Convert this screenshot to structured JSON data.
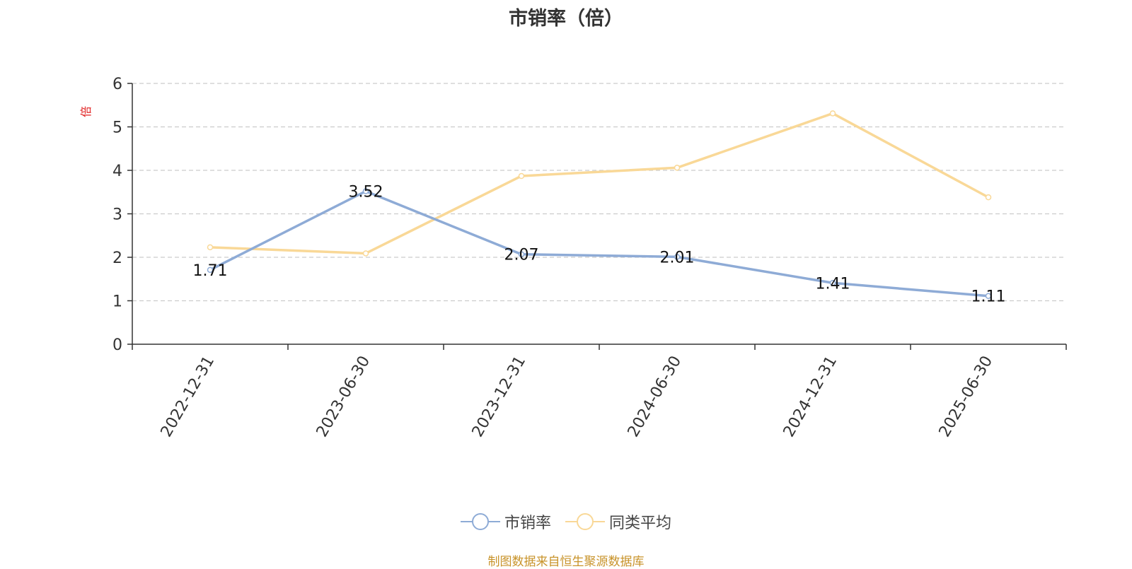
{
  "colors": {
    "series1": "#8eabd6",
    "series2": "#f9d897",
    "grid": "#cccccc",
    "axis": "#333333",
    "ylabel": "#e02020",
    "footer": "#c8932a"
  },
  "footer": "制图数据来自恒生聚源数据库",
  "chart_data": {
    "type": "line",
    "title": "市销率（倍）",
    "ylabel": "倍",
    "xlabel": "",
    "x": [
      "2022-12-31",
      "2023-06-30",
      "2023-12-31",
      "2024-06-30",
      "2024-12-31",
      "2025-06-30"
    ],
    "ylim": [
      0,
      6
    ],
    "yticks": [
      "0",
      "1",
      "2",
      "3",
      "4",
      "5",
      "6"
    ],
    "grid": true,
    "legend": "bottom-center",
    "series": [
      {
        "name": "市销率",
        "values": [
          1.71,
          3.52,
          2.07,
          2.01,
          1.41,
          1.11
        ],
        "labels": [
          "1.71",
          "3.52",
          "2.07",
          "2.01",
          "1.41",
          "1.11"
        ]
      },
      {
        "name": "同类平均",
        "values": [
          2.23,
          2.09,
          3.87,
          4.06,
          5.31,
          3.38
        ]
      }
    ]
  }
}
